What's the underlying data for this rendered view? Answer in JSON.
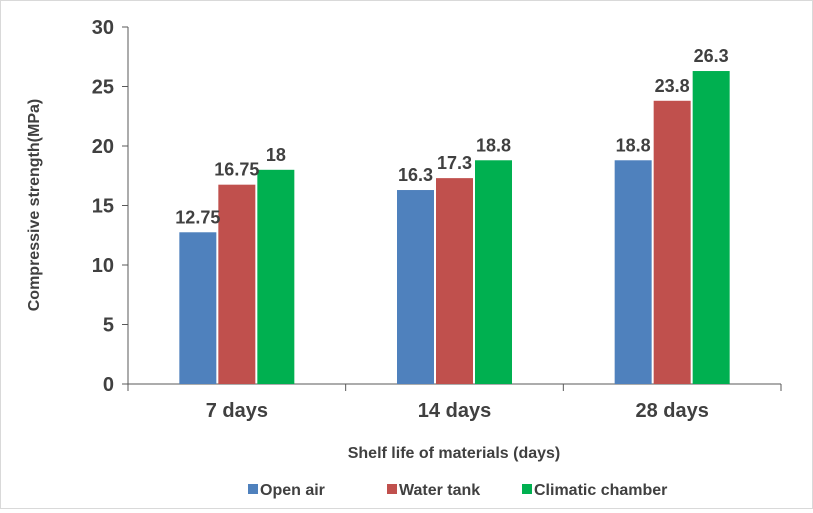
{
  "chart_data": {
    "type": "bar",
    "title": "",
    "xlabel": "Shelf life of materials (days)",
    "ylabel": "Compressive strength(MPa)",
    "ylim": [
      0,
      30
    ],
    "yticks": [
      0,
      5,
      10,
      15,
      20,
      25,
      30
    ],
    "grid": false,
    "legend_position": "bottom",
    "categories": [
      "7 days",
      "14 days",
      "28 days"
    ],
    "series": [
      {
        "name": "Open air",
        "color": "#4f81bd",
        "values": [
          12.75,
          16.3,
          18.8
        ],
        "labels": [
          "12.75",
          "16.3",
          "18.8"
        ]
      },
      {
        "name": "Water tank",
        "color": "#c0504d",
        "values": [
          16.75,
          17.3,
          23.8
        ],
        "labels": [
          "16.75",
          "17.3",
          "23.8"
        ]
      },
      {
        "name": "Climatic chamber",
        "color": "#00b050",
        "values": [
          18,
          18.8,
          26.3
        ],
        "labels": [
          "18",
          "18.8",
          "26.3"
        ]
      }
    ]
  }
}
